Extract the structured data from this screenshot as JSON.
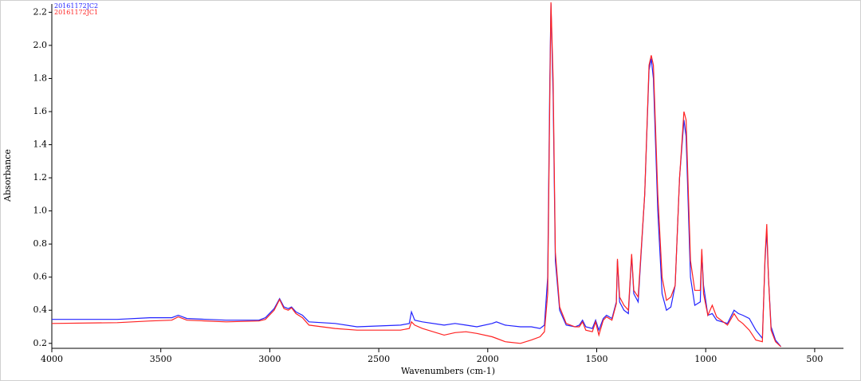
{
  "chart_data": {
    "type": "line",
    "x_label": "Wavenumbers (cm-1)",
    "y_label": "Absorbance",
    "x": [
      4000,
      3700,
      3550,
      3450,
      3420,
      3380,
      3200,
      3050,
      3020,
      2980,
      2955,
      2935,
      2915,
      2900,
      2880,
      2850,
      2820,
      2700,
      2600,
      2400,
      2360,
      2350,
      2335,
      2300,
      2200,
      2150,
      2100,
      2050,
      1980,
      1960,
      1920,
      1850,
      1800,
      1760,
      1740,
      1725,
      1715,
      1710,
      1700,
      1690,
      1670,
      1640,
      1600,
      1580,
      1565,
      1550,
      1520,
      1505,
      1490,
      1470,
      1455,
      1430,
      1410,
      1405,
      1395,
      1375,
      1355,
      1340,
      1330,
      1310,
      1280,
      1260,
      1250,
      1240,
      1220,
      1200,
      1180,
      1160,
      1140,
      1120,
      1100,
      1090,
      1070,
      1050,
      1025,
      1018,
      1010,
      990,
      970,
      950,
      900,
      870,
      850,
      830,
      800,
      770,
      740,
      728,
      720,
      712,
      700,
      680,
      655
    ],
    "series": [
      {
        "name": "20161172JC2",
        "color": "#2222ff",
        "values": [
          0.345,
          0.345,
          0.355,
          0.355,
          0.37,
          0.35,
          0.34,
          0.34,
          0.355,
          0.41,
          0.47,
          0.42,
          0.41,
          0.42,
          0.39,
          0.37,
          0.33,
          0.32,
          0.3,
          0.31,
          0.32,
          0.39,
          0.34,
          0.33,
          0.31,
          0.32,
          0.31,
          0.3,
          0.32,
          0.33,
          0.31,
          0.3,
          0.3,
          0.29,
          0.31,
          0.6,
          1.8,
          2.25,
          1.7,
          0.7,
          0.4,
          0.31,
          0.3,
          0.31,
          0.34,
          0.3,
          0.29,
          0.34,
          0.28,
          0.35,
          0.37,
          0.35,
          0.45,
          0.7,
          0.45,
          0.4,
          0.38,
          0.73,
          0.5,
          0.45,
          1.1,
          1.85,
          1.92,
          1.8,
          1.0,
          0.5,
          0.4,
          0.42,
          0.55,
          1.2,
          1.55,
          1.45,
          0.6,
          0.43,
          0.45,
          0.75,
          0.55,
          0.37,
          0.38,
          0.34,
          0.32,
          0.4,
          0.38,
          0.37,
          0.35,
          0.28,
          0.23,
          0.7,
          0.88,
          0.6,
          0.3,
          0.22,
          0.18
        ]
      },
      {
        "name": "20161172JC1",
        "color": "#ff2222",
        "values": [
          0.32,
          0.325,
          0.335,
          0.34,
          0.36,
          0.34,
          0.33,
          0.335,
          0.345,
          0.4,
          0.465,
          0.41,
          0.4,
          0.415,
          0.38,
          0.355,
          0.31,
          0.29,
          0.28,
          0.28,
          0.29,
          0.33,
          0.31,
          0.29,
          0.25,
          0.265,
          0.27,
          0.26,
          0.24,
          0.23,
          0.21,
          0.2,
          0.22,
          0.24,
          0.27,
          0.5,
          1.7,
          2.26,
          1.8,
          0.75,
          0.42,
          0.32,
          0.3,
          0.3,
          0.33,
          0.28,
          0.27,
          0.33,
          0.25,
          0.34,
          0.36,
          0.34,
          0.44,
          0.71,
          0.48,
          0.43,
          0.4,
          0.74,
          0.52,
          0.48,
          1.1,
          1.88,
          1.94,
          1.88,
          1.1,
          0.6,
          0.46,
          0.48,
          0.55,
          1.2,
          1.6,
          1.55,
          0.7,
          0.52,
          0.52,
          0.77,
          0.5,
          0.37,
          0.43,
          0.36,
          0.31,
          0.38,
          0.34,
          0.32,
          0.28,
          0.22,
          0.21,
          0.72,
          0.92,
          0.6,
          0.28,
          0.21,
          0.18
        ]
      }
    ],
    "xlim": [
      4000,
      368
    ],
    "ylim": [
      0.17,
      2.25
    ],
    "xticks": [
      4000,
      3500,
      3000,
      2500,
      2000,
      1500,
      1000,
      500
    ],
    "yticks": [
      0.2,
      0.4,
      0.6,
      0.8,
      {
        "value": 1,
        "label": "1.0"
      },
      1.2,
      1.4,
      1.6,
      1.8,
      {
        "value": 2,
        "label": "2.0"
      },
      2.2
    ],
    "legend": "upper left"
  }
}
